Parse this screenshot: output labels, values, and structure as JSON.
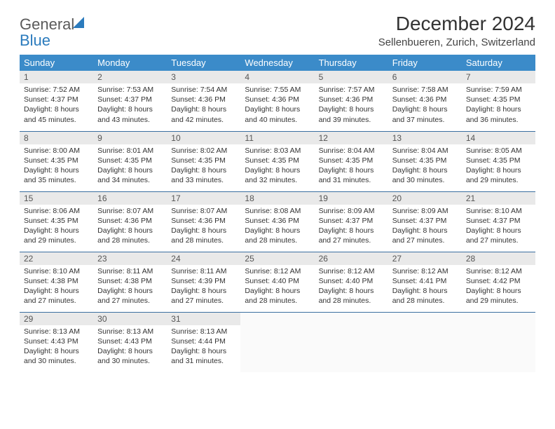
{
  "logo": {
    "text1": "General",
    "text2": "Blue"
  },
  "title": "December 2024",
  "location": "Sellenbueren, Zurich, Switzerland",
  "colors": {
    "header_bg": "#3b8bc9",
    "header_text": "#ffffff",
    "daynum_bg": "#e9e9e9",
    "row_border": "#3b6fa0",
    "logo_blue": "#2b7bbd",
    "logo_gray": "#5a5a5a",
    "body_text": "#333333"
  },
  "typography": {
    "title_fontsize": 28,
    "location_fontsize": 15,
    "dayheader_fontsize": 13,
    "cell_fontsize": 10.5
  },
  "weekdays": [
    "Sunday",
    "Monday",
    "Tuesday",
    "Wednesday",
    "Thursday",
    "Friday",
    "Saturday"
  ],
  "weeks": [
    [
      {
        "n": "1",
        "sr": "Sunrise: 7:52 AM",
        "ss": "Sunset: 4:37 PM",
        "d1": "Daylight: 8 hours",
        "d2": "and 45 minutes."
      },
      {
        "n": "2",
        "sr": "Sunrise: 7:53 AM",
        "ss": "Sunset: 4:37 PM",
        "d1": "Daylight: 8 hours",
        "d2": "and 43 minutes."
      },
      {
        "n": "3",
        "sr": "Sunrise: 7:54 AM",
        "ss": "Sunset: 4:36 PM",
        "d1": "Daylight: 8 hours",
        "d2": "and 42 minutes."
      },
      {
        "n": "4",
        "sr": "Sunrise: 7:55 AM",
        "ss": "Sunset: 4:36 PM",
        "d1": "Daylight: 8 hours",
        "d2": "and 40 minutes."
      },
      {
        "n": "5",
        "sr": "Sunrise: 7:57 AM",
        "ss": "Sunset: 4:36 PM",
        "d1": "Daylight: 8 hours",
        "d2": "and 39 minutes."
      },
      {
        "n": "6",
        "sr": "Sunrise: 7:58 AM",
        "ss": "Sunset: 4:36 PM",
        "d1": "Daylight: 8 hours",
        "d2": "and 37 minutes."
      },
      {
        "n": "7",
        "sr": "Sunrise: 7:59 AM",
        "ss": "Sunset: 4:35 PM",
        "d1": "Daylight: 8 hours",
        "d2": "and 36 minutes."
      }
    ],
    [
      {
        "n": "8",
        "sr": "Sunrise: 8:00 AM",
        "ss": "Sunset: 4:35 PM",
        "d1": "Daylight: 8 hours",
        "d2": "and 35 minutes."
      },
      {
        "n": "9",
        "sr": "Sunrise: 8:01 AM",
        "ss": "Sunset: 4:35 PM",
        "d1": "Daylight: 8 hours",
        "d2": "and 34 minutes."
      },
      {
        "n": "10",
        "sr": "Sunrise: 8:02 AM",
        "ss": "Sunset: 4:35 PM",
        "d1": "Daylight: 8 hours",
        "d2": "and 33 minutes."
      },
      {
        "n": "11",
        "sr": "Sunrise: 8:03 AM",
        "ss": "Sunset: 4:35 PM",
        "d1": "Daylight: 8 hours",
        "d2": "and 32 minutes."
      },
      {
        "n": "12",
        "sr": "Sunrise: 8:04 AM",
        "ss": "Sunset: 4:35 PM",
        "d1": "Daylight: 8 hours",
        "d2": "and 31 minutes."
      },
      {
        "n": "13",
        "sr": "Sunrise: 8:04 AM",
        "ss": "Sunset: 4:35 PM",
        "d1": "Daylight: 8 hours",
        "d2": "and 30 minutes."
      },
      {
        "n": "14",
        "sr": "Sunrise: 8:05 AM",
        "ss": "Sunset: 4:35 PM",
        "d1": "Daylight: 8 hours",
        "d2": "and 29 minutes."
      }
    ],
    [
      {
        "n": "15",
        "sr": "Sunrise: 8:06 AM",
        "ss": "Sunset: 4:35 PM",
        "d1": "Daylight: 8 hours",
        "d2": "and 29 minutes."
      },
      {
        "n": "16",
        "sr": "Sunrise: 8:07 AM",
        "ss": "Sunset: 4:36 PM",
        "d1": "Daylight: 8 hours",
        "d2": "and 28 minutes."
      },
      {
        "n": "17",
        "sr": "Sunrise: 8:07 AM",
        "ss": "Sunset: 4:36 PM",
        "d1": "Daylight: 8 hours",
        "d2": "and 28 minutes."
      },
      {
        "n": "18",
        "sr": "Sunrise: 8:08 AM",
        "ss": "Sunset: 4:36 PM",
        "d1": "Daylight: 8 hours",
        "d2": "and 28 minutes."
      },
      {
        "n": "19",
        "sr": "Sunrise: 8:09 AM",
        "ss": "Sunset: 4:37 PM",
        "d1": "Daylight: 8 hours",
        "d2": "and 27 minutes."
      },
      {
        "n": "20",
        "sr": "Sunrise: 8:09 AM",
        "ss": "Sunset: 4:37 PM",
        "d1": "Daylight: 8 hours",
        "d2": "and 27 minutes."
      },
      {
        "n": "21",
        "sr": "Sunrise: 8:10 AM",
        "ss": "Sunset: 4:37 PM",
        "d1": "Daylight: 8 hours",
        "d2": "and 27 minutes."
      }
    ],
    [
      {
        "n": "22",
        "sr": "Sunrise: 8:10 AM",
        "ss": "Sunset: 4:38 PM",
        "d1": "Daylight: 8 hours",
        "d2": "and 27 minutes."
      },
      {
        "n": "23",
        "sr": "Sunrise: 8:11 AM",
        "ss": "Sunset: 4:38 PM",
        "d1": "Daylight: 8 hours",
        "d2": "and 27 minutes."
      },
      {
        "n": "24",
        "sr": "Sunrise: 8:11 AM",
        "ss": "Sunset: 4:39 PM",
        "d1": "Daylight: 8 hours",
        "d2": "and 27 minutes."
      },
      {
        "n": "25",
        "sr": "Sunrise: 8:12 AM",
        "ss": "Sunset: 4:40 PM",
        "d1": "Daylight: 8 hours",
        "d2": "and 28 minutes."
      },
      {
        "n": "26",
        "sr": "Sunrise: 8:12 AM",
        "ss": "Sunset: 4:40 PM",
        "d1": "Daylight: 8 hours",
        "d2": "and 28 minutes."
      },
      {
        "n": "27",
        "sr": "Sunrise: 8:12 AM",
        "ss": "Sunset: 4:41 PM",
        "d1": "Daylight: 8 hours",
        "d2": "and 28 minutes."
      },
      {
        "n": "28",
        "sr": "Sunrise: 8:12 AM",
        "ss": "Sunset: 4:42 PM",
        "d1": "Daylight: 8 hours",
        "d2": "and 29 minutes."
      }
    ],
    [
      {
        "n": "29",
        "sr": "Sunrise: 8:13 AM",
        "ss": "Sunset: 4:43 PM",
        "d1": "Daylight: 8 hours",
        "d2": "and 30 minutes."
      },
      {
        "n": "30",
        "sr": "Sunrise: 8:13 AM",
        "ss": "Sunset: 4:43 PM",
        "d1": "Daylight: 8 hours",
        "d2": "and 30 minutes."
      },
      {
        "n": "31",
        "sr": "Sunrise: 8:13 AM",
        "ss": "Sunset: 4:44 PM",
        "d1": "Daylight: 8 hours",
        "d2": "and 31 minutes."
      },
      {
        "empty": true
      },
      {
        "empty": true
      },
      {
        "empty": true
      },
      {
        "empty": true
      }
    ]
  ]
}
